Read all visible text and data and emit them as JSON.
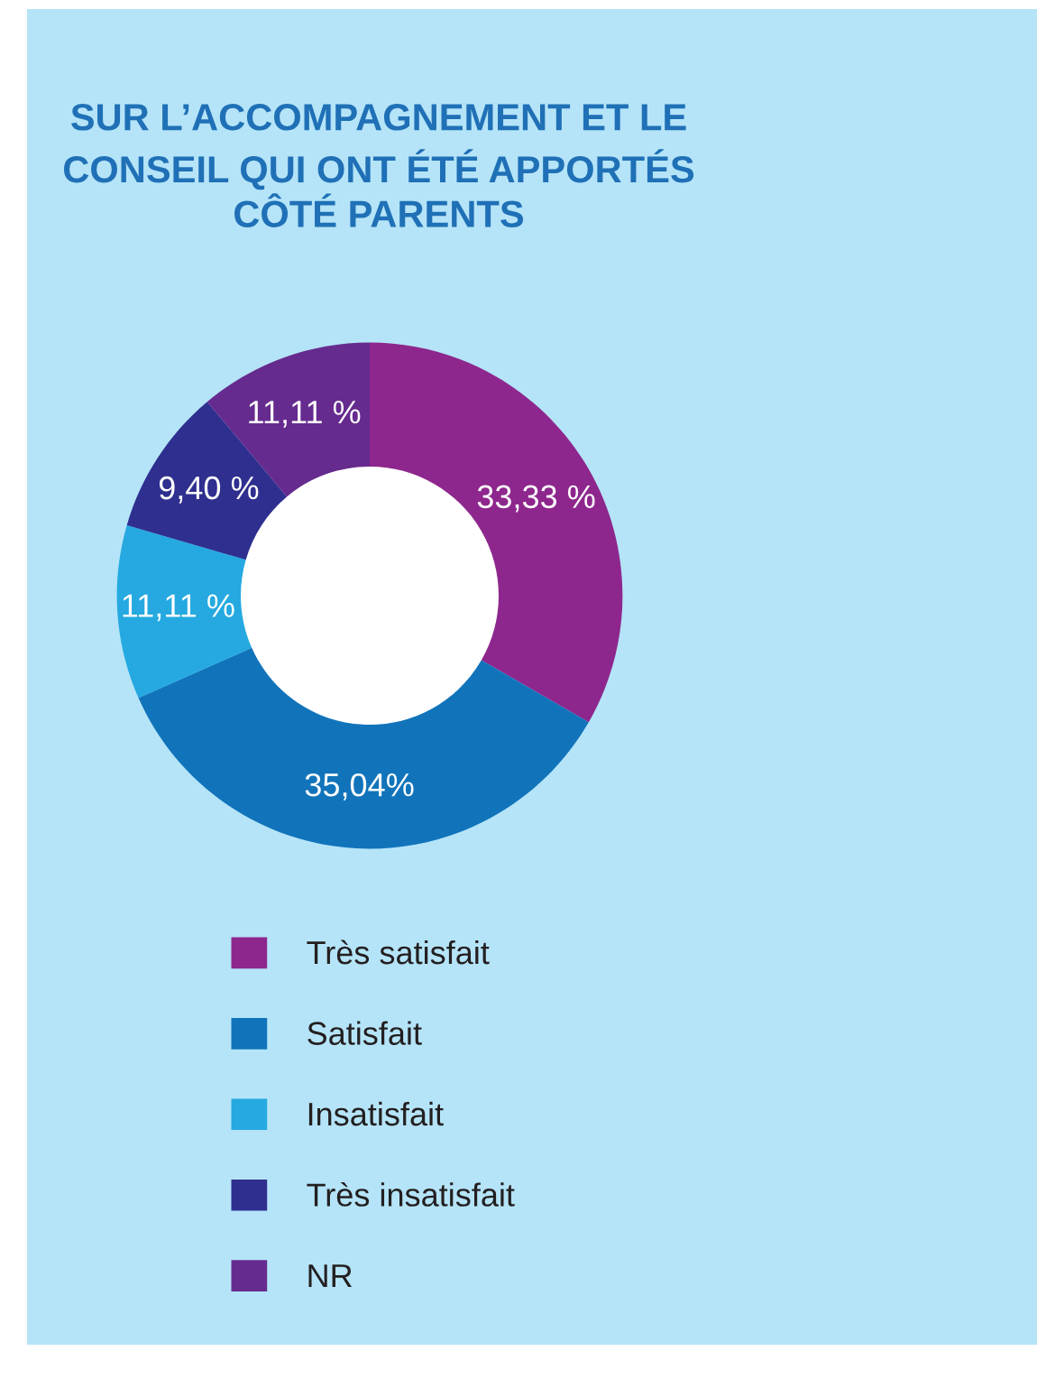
{
  "chart_data": {
    "type": "donut",
    "title": "SUR L’ACCOMPAGNEMENT ET LE\nCONSEIL QUI ONT ÉTÉ APPORTÉS\nCÔTÉ PARENTS",
    "categories": [
      "Très satisfait",
      "Satisfait",
      "Insatisfait",
      "Très insatisfait",
      "NR"
    ],
    "values": [
      33.33,
      35.04,
      11.11,
      9.4,
      11.11
    ],
    "value_labels": [
      "33,33 %",
      "35,04%",
      "11,11 %",
      "9,40 %",
      "11,11 %"
    ],
    "colors": [
      "#8e278d",
      "#1174bb",
      "#25a9e0",
      "#2e2f8f",
      "#662b8e"
    ],
    "legend": "bottom"
  }
}
